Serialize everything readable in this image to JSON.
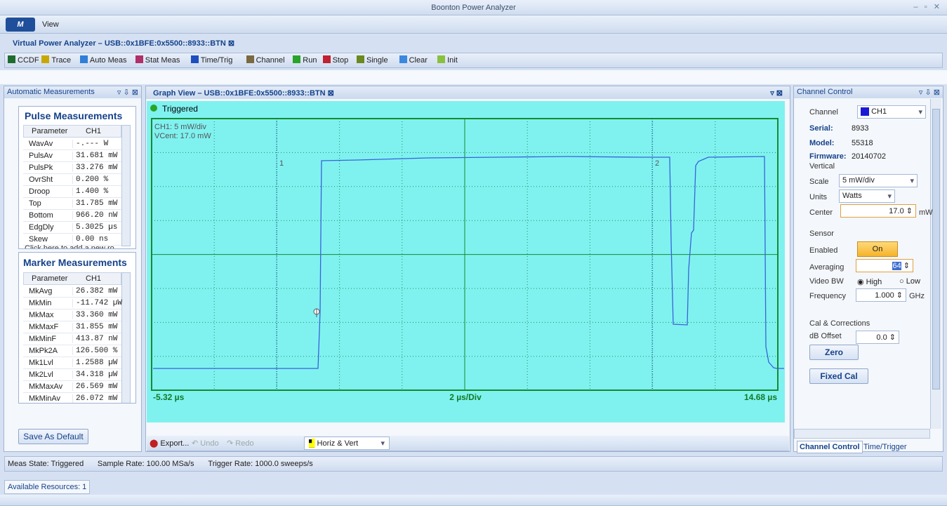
{
  "window": {
    "title": "Boonton Power Analyzer",
    "menu": [
      "View"
    ]
  },
  "document_tab": "Virtual Power Analyzer – USB::0x1BFE:0x5500::8933::BTN",
  "toolbar": [
    "CCDF",
    "Trace",
    "Auto Meas",
    "Stat Meas",
    "Time/Trig",
    "Channel",
    "Run",
    "Stop",
    "Single",
    "Clear",
    "Init"
  ],
  "left_panel": {
    "title": "Automatic Measurements",
    "pulse": {
      "title": "Pulse Measurements",
      "header": [
        "Parameter",
        "CH1"
      ],
      "rows": [
        [
          "WavAv",
          "-.--- W"
        ],
        [
          "PulsAv",
          "31.681 mW"
        ],
        [
          "PulsPk",
          "33.276 mW"
        ],
        [
          "OvrSht",
          "0.200 %"
        ],
        [
          "Droop",
          "1.400 %"
        ],
        [
          "Top",
          "31.785 mW"
        ],
        [
          "Bottom",
          "966.20 nW"
        ],
        [
          "EdgDly",
          "5.3025 µs"
        ],
        [
          "Skew",
          "0.00 ns"
        ]
      ],
      "add_row": "Click here to add a new ro"
    },
    "marker": {
      "title": "Marker Measurements",
      "header": [
        "Parameter",
        "CH1"
      ],
      "rows": [
        [
          "MkAvg",
          "26.382 mW"
        ],
        [
          "MkMin",
          "-11.742 µW"
        ],
        [
          "MkMax",
          "33.360 mW"
        ],
        [
          "MkMaxF",
          "31.855 mW"
        ],
        [
          "MkMinF",
          "413.87 nW"
        ],
        [
          "MkPk2A",
          "126.500 %"
        ],
        [
          "Mk1Lvl",
          "1.2588 µW"
        ],
        [
          "Mk2Lvl",
          "34.318 µW"
        ],
        [
          "MkMaxAv",
          "26.569 mW"
        ],
        [
          "MkMinAv",
          "26.072 mW"
        ]
      ]
    },
    "button": "Save As Default"
  },
  "graph": {
    "tab": "Graph View – USB::0x1BFE:0x5500::8933::BTN",
    "status": "Triggered",
    "scale_text": "CH1: 5  mW/div",
    "center_text": "VCent: 17.0 mW",
    "marker1": "1",
    "marker2": "2",
    "x_start": "-5.32 µs",
    "x_div": "2 µs/Div",
    "x_end": "14.68 µs",
    "bottom_tools": [
      "Export...",
      "Undo",
      "Redo"
    ],
    "view_mode": "Horiz & Vert"
  },
  "right_panel": {
    "title": "Channel Control",
    "channel_label": "Channel",
    "channel": "CH1",
    "serial_label": "Serial:",
    "serial": "8933",
    "model_label": "Model:",
    "model": "55318",
    "firmware_label": "Firmware:",
    "firmware": "20140702",
    "vertical": "Vertical",
    "scale_label": "Scale",
    "scale": "5  mW/div",
    "units_label": "Units",
    "units": "Watts",
    "center_label": "Center",
    "center": "17.0",
    "center_unit": "mW",
    "sensor": "Sensor",
    "enabled_label": "Enabled",
    "enabled": "On",
    "averaging_label": "Averaging",
    "averaging": "64",
    "videobw_label": "Video BW",
    "high": "High",
    "low": "Low",
    "frequency_label": "Frequency",
    "frequency": "1.000",
    "frequency_unit": "GHz",
    "cal": "Cal & Corrections",
    "dboffset_label": "dB Offset",
    "dboffset": "0.0",
    "zero": "Zero",
    "fixed_cal": "Fixed Cal",
    "tabs": [
      "Channel Control",
      "Time/Trigger"
    ]
  },
  "status_bar": [
    "Meas State: Triggered",
    "Sample Rate: 100.00 MSa/s",
    "Trigger Rate: 1000.0 sweeps/s"
  ],
  "resources": "Available Resources: 1"
}
